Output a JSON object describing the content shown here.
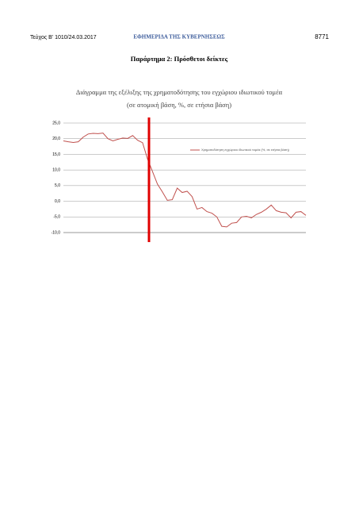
{
  "header": {
    "issue": "Τεύχος Β' 1010/24.03.2017",
    "gazette": "ΕΦΗΜΕΡΙΔΑ ΤΗΣ ΚΥΒΕΡΝΗΣΕΩΣ",
    "page": "8771"
  },
  "heading": "Παράρτημα 2: Πρόσθετοι δείκτες",
  "chart_data": {
    "type": "line",
    "title": "Διάγραμμα της εξέλιξης της χρηματοδότησης του εγχώριου ιδιωτικού τομέα",
    "subtitle": "(σε ατομική βάση, %, σε ετήσια βάση)",
    "categories": [
      null,
      null,
      null,
      null,
      null,
      null,
      null,
      null,
      null,
      null,
      null,
      null,
      null,
      null,
      null,
      null,
      null,
      null,
      null,
      null,
      null,
      null,
      null,
      null,
      null,
      null,
      null,
      null,
      null,
      null,
      null,
      null,
      null,
      null,
      null,
      null,
      null,
      null,
      null,
      null,
      null,
      null,
      null,
      null,
      null,
      null,
      null,
      null,
      null,
      null
    ],
    "series": [
      {
        "name": "Χρηματοδότηση εγχώριου ιδιωτικού τομέα (%, σε ετήσια βάση)",
        "color": "#c0504d",
        "values": [
          19.3,
          19.0,
          18.8,
          19.0,
          20.5,
          21.5,
          21.7,
          21.6,
          21.8,
          20.0,
          19.3,
          19.8,
          20.2,
          20.1,
          21.0,
          19.5,
          18.7,
          13.5,
          9.5,
          5.5,
          3.0,
          0.3,
          0.5,
          4.2,
          2.8,
          3.2,
          1.5,
          -2.5,
          -2.0,
          -3.3,
          -3.8,
          -5.0,
          -8.0,
          -8.2,
          -7.0,
          -6.8,
          -5.0,
          -4.8,
          -5.3,
          -4.2,
          -3.5,
          -2.5,
          -1.2,
          -3.0,
          -3.5,
          -3.7,
          -5.3,
          -3.5,
          -3.3,
          -4.5
        ]
      }
    ],
    "ylim": [
      -10,
      25
    ],
    "yticks": [
      {
        "value": -10,
        "label": "-10,0"
      },
      {
        "value": -5,
        "label": "-5,0"
      },
      {
        "value": 0,
        "label": "0,0"
      },
      {
        "value": 5,
        "label": "5,0"
      },
      {
        "value": 10,
        "label": "10,0"
      },
      {
        "value": 15,
        "label": "15,0"
      },
      {
        "value": 20,
        "label": "20,0"
      },
      {
        "value": 25,
        "label": "25,0"
      }
    ],
    "grid": true
  }
}
